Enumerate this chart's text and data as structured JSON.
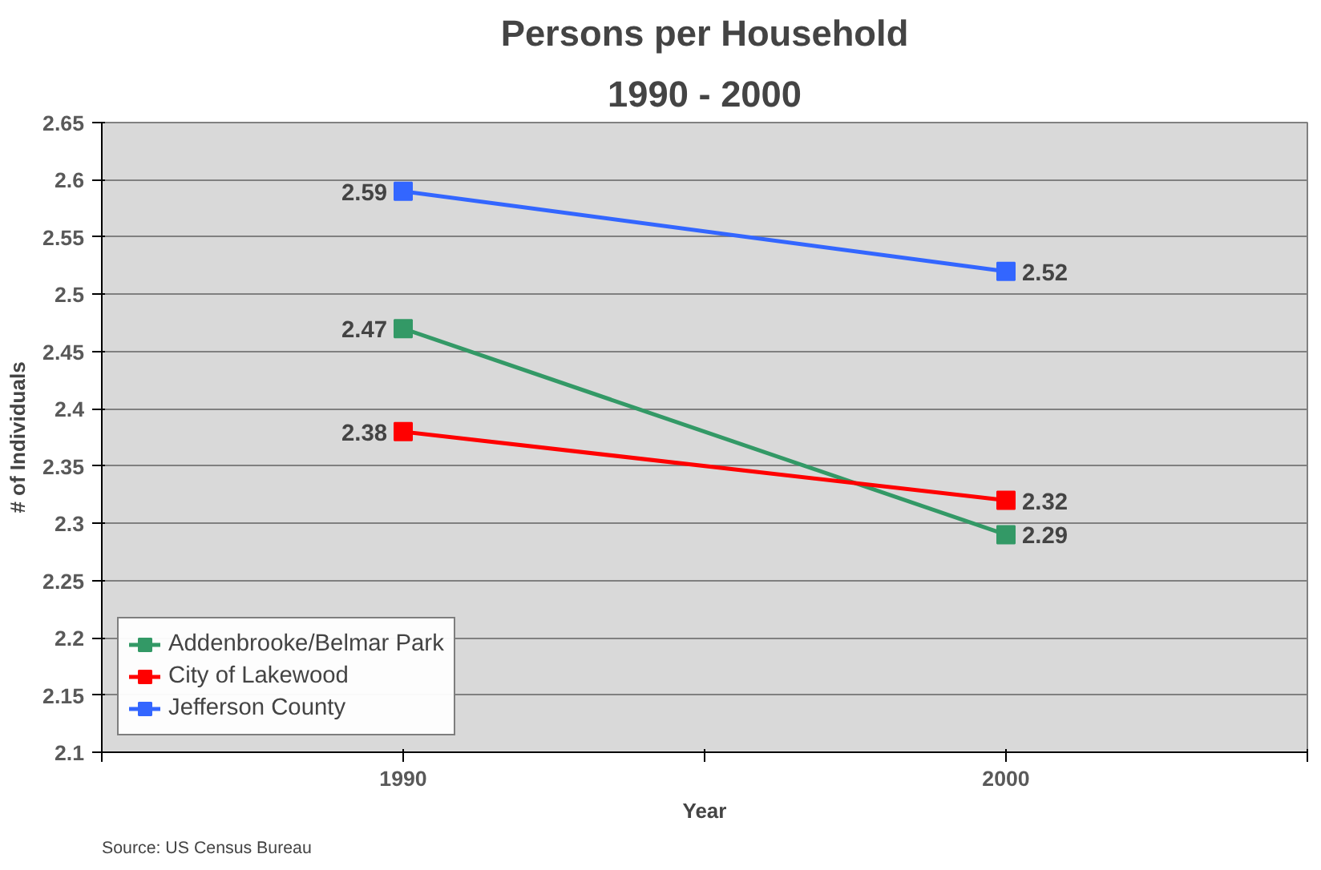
{
  "chart_data": {
    "type": "line",
    "title": "Persons per Household",
    "subtitle": "1990 - 2000",
    "xlabel": "Year",
    "ylabel": "# of Individuals",
    "annotations": [
      "Source: US Census Bureau"
    ],
    "x": [
      1990,
      2000
    ],
    "series": [
      {
        "name": "Addenbrooke/Belmar Park",
        "color": "#339966",
        "values": [
          2.47,
          2.29
        ]
      },
      {
        "name": "City of Lakewood",
        "color": "#ff0000",
        "values": [
          2.38,
          2.32
        ]
      },
      {
        "name": "Jefferson County",
        "color": "#3366ff",
        "values": [
          2.59,
          2.52
        ]
      }
    ],
    "xlim": [
      1985,
      2005
    ],
    "xticks": [
      {
        "value": 1985,
        "label": null
      },
      1990,
      {
        "value": 1995,
        "label": null
      },
      2000,
      {
        "value": 2005,
        "label": null
      }
    ],
    "ylim": [
      2.1,
      2.65
    ],
    "yticks": [
      2.1,
      2.15,
      2.2,
      2.25,
      2.3,
      2.35,
      2.4,
      2.45,
      2.5,
      2.55,
      2.6,
      2.65
    ],
    "grid": "y",
    "legend": "bottom left",
    "marker": "square",
    "line_style": "solid",
    "data_labels": true
  }
}
